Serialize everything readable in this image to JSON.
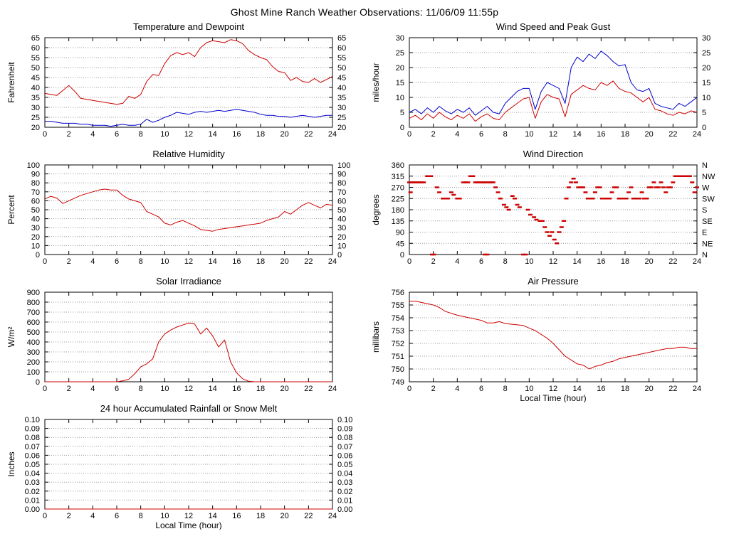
{
  "page": {
    "title": "Ghost Mine Ranch Weather Observations: 11/06/09 11:55p"
  },
  "colors": {
    "primary_series": "#cc0000",
    "secondary_series": "#0000cc",
    "grid": "#999999",
    "axis": "#000000"
  },
  "chart_data": [
    {
      "id": "temperature-dewpoint",
      "type": "line",
      "title": "Temperature and Dewpoint",
      "ylabel": "Fahrenheit",
      "xlabel": "",
      "xlim": [
        0,
        24
      ],
      "xtick_step": 2,
      "ylim": [
        20,
        65
      ],
      "ytick_step": 5,
      "ydecimals": 0,
      "mirror_y": true,
      "grid": true,
      "legend": "none",
      "series": [
        {
          "name": "temperature",
          "color": "#cc0000",
          "style": "line",
          "x_start": 0,
          "x_step": 0.5,
          "values": [
            37,
            36.5,
            36,
            38.5,
            41,
            38,
            34.5,
            34,
            33.5,
            33,
            32.5,
            32,
            31.5,
            32,
            35.5,
            34.5,
            36.5,
            43,
            46.5,
            46,
            52,
            56,
            57.5,
            56.5,
            57.5,
            55.5,
            60,
            62.5,
            63.5,
            63,
            62.5,
            64,
            63.5,
            62,
            58.5,
            56.5,
            55,
            54,
            50.5,
            48,
            47.5,
            43.5,
            45,
            43,
            42.5,
            44.5,
            42.5,
            44,
            45.5
          ]
        },
        {
          "name": "dewpoint",
          "color": "#0000cc",
          "style": "line",
          "x_start": 0,
          "x_step": 0.5,
          "values": [
            23,
            23,
            22.5,
            22,
            22,
            22,
            21.5,
            21.5,
            21,
            21,
            21,
            20.5,
            21,
            21.5,
            21,
            21,
            21.5,
            24,
            22.5,
            23.5,
            25,
            26,
            27.5,
            27,
            26.5,
            27.5,
            28,
            27.5,
            28,
            28.5,
            28,
            28.5,
            29,
            28.5,
            28,
            27.5,
            26.5,
            26,
            26,
            25.5,
            25.5,
            25,
            25.5,
            26,
            25.5,
            25,
            25.5,
            26,
            26
          ]
        }
      ]
    },
    {
      "id": "wind-speed",
      "type": "line",
      "title": "Wind Speed and Peak Gust",
      "ylabel": "miles/hour",
      "xlabel": "",
      "xlim": [
        0,
        24
      ],
      "xtick_step": 2,
      "ylim": [
        0,
        30
      ],
      "ytick_step": 5,
      "ydecimals": 0,
      "mirror_y": true,
      "grid": true,
      "legend": "none",
      "series": [
        {
          "name": "wind-speed",
          "color": "#cc0000",
          "style": "line",
          "x_start": 0,
          "x_step": 0.5,
          "values": [
            3,
            4,
            2.5,
            4.5,
            3,
            5,
            3.5,
            2.5,
            4,
            3,
            4.5,
            2,
            3.5,
            4.5,
            3,
            2.5,
            5,
            6.5,
            8,
            9.5,
            10,
            3,
            8.5,
            11,
            10,
            9.5,
            3.5,
            11,
            12.5,
            14,
            13,
            12.5,
            15,
            14,
            15.5,
            13,
            12,
            11.5,
            10,
            8.5,
            10,
            6,
            5.5,
            4.5,
            4,
            5,
            4.5,
            5.5,
            5
          ]
        },
        {
          "name": "peak-gust",
          "color": "#0000cc",
          "style": "line",
          "x_start": 0,
          "x_step": 0.5,
          "values": [
            5,
            6,
            4.5,
            6.5,
            5,
            7,
            5.5,
            4.5,
            6,
            5,
            6.5,
            4,
            5.5,
            7,
            5,
            4.5,
            8,
            10,
            12,
            13,
            13,
            6,
            12,
            15,
            14,
            13,
            8,
            20,
            23.5,
            22,
            24.5,
            23,
            25.5,
            24,
            22,
            20.5,
            21,
            15,
            12.5,
            12,
            13,
            8,
            7,
            6.5,
            6,
            8,
            7,
            8.5,
            10
          ]
        }
      ]
    },
    {
      "id": "humidity",
      "type": "line",
      "title": "Relative Humidity",
      "ylabel": "Percent",
      "xlabel": "",
      "xlim": [
        0,
        24
      ],
      "xtick_step": 2,
      "ylim": [
        0,
        100
      ],
      "ytick_step": 10,
      "ydecimals": 0,
      "mirror_y": true,
      "grid": true,
      "legend": "none",
      "series": [
        {
          "name": "relative-humidity",
          "color": "#cc0000",
          "style": "line",
          "x_start": 0,
          "x_step": 0.5,
          "values": [
            62,
            65,
            63,
            57,
            60,
            63,
            66,
            68,
            70,
            72,
            73,
            72,
            72,
            66,
            62,
            60,
            58,
            48,
            45,
            42,
            35,
            33,
            36,
            38,
            35,
            32,
            28,
            27,
            26,
            28,
            29,
            30,
            31,
            32,
            33,
            34,
            35,
            38,
            40,
            42,
            48,
            45,
            50,
            55,
            58,
            55,
            52,
            56,
            55
          ]
        }
      ]
    },
    {
      "id": "wind-direction",
      "type": "scatter",
      "title": "Wind Direction",
      "ylabel": "degrees",
      "xlabel": "",
      "xlim": [
        0,
        24
      ],
      "xtick_step": 2,
      "ylim": [
        0,
        360
      ],
      "ytick_step": 45,
      "ydecimals": 0,
      "mirror_y": false,
      "grid": true,
      "legend": "none",
      "right_axis_labels": [
        "N",
        "NW",
        "W",
        "SW",
        "S",
        "SE",
        "E",
        "NE",
        "N"
      ],
      "series": [
        {
          "name": "wind-direction",
          "color": "#cc0000",
          "style": "dash",
          "points": [
            [
              0,
              290
            ],
            [
              0.15,
              290
            ],
            [
              0.3,
              290
            ],
            [
              0.45,
              290
            ],
            [
              0.6,
              290
            ],
            [
              0.75,
              290
            ],
            [
              0.9,
              290
            ],
            [
              1.05,
              290
            ],
            [
              1.2,
              290
            ],
            [
              0.1,
              250
            ],
            [
              1.5,
              315
            ],
            [
              1.65,
              315
            ],
            [
              1.8,
              315
            ],
            [
              1.9,
              0
            ],
            [
              2.05,
              0
            ],
            [
              2.3,
              270
            ],
            [
              2.5,
              250
            ],
            [
              2.8,
              225
            ],
            [
              3,
              225
            ],
            [
              3.2,
              225
            ],
            [
              3.5,
              250
            ],
            [
              3.7,
              240
            ],
            [
              4,
              225
            ],
            [
              4.2,
              225
            ],
            [
              4.5,
              290
            ],
            [
              4.7,
              290
            ],
            [
              4.9,
              290
            ],
            [
              5.1,
              315
            ],
            [
              5.3,
              315
            ],
            [
              5.5,
              290
            ],
            [
              5.65,
              290
            ],
            [
              5.8,
              290
            ],
            [
              5.95,
              290
            ],
            [
              6.1,
              290
            ],
            [
              6.25,
              290
            ],
            [
              6.4,
              290
            ],
            [
              6.55,
              290
            ],
            [
              6.7,
              290
            ],
            [
              6.85,
              290
            ],
            [
              7,
              290
            ],
            [
              6.3,
              0
            ],
            [
              6.5,
              0
            ],
            [
              7.2,
              270
            ],
            [
              7.4,
              250
            ],
            [
              7.6,
              225
            ],
            [
              7.9,
              200
            ],
            [
              8.1,
              190
            ],
            [
              8.3,
              180
            ],
            [
              8.6,
              235
            ],
            [
              8.8,
              225
            ],
            [
              9,
              200
            ],
            [
              9.2,
              190
            ],
            [
              9.5,
              0
            ],
            [
              9.7,
              0
            ],
            [
              9.9,
              180
            ],
            [
              10.1,
              160
            ],
            [
              10.4,
              150
            ],
            [
              10.6,
              140
            ],
            [
              10.9,
              135
            ],
            [
              11.1,
              135
            ],
            [
              11.3,
              110
            ],
            [
              11.5,
              90
            ],
            [
              11.7,
              75
            ],
            [
              11.9,
              90
            ],
            [
              12.1,
              60
            ],
            [
              12.3,
              45
            ],
            [
              12.5,
              90
            ],
            [
              12.7,
              110
            ],
            [
              12.9,
              135
            ],
            [
              13.1,
              225
            ],
            [
              13.3,
              270
            ],
            [
              13.5,
              290
            ],
            [
              13.7,
              305
            ],
            [
              13.9,
              290
            ],
            [
              14.1,
              270
            ],
            [
              14.3,
              270
            ],
            [
              14.5,
              270
            ],
            [
              14.7,
              250
            ],
            [
              14.9,
              225
            ],
            [
              15.1,
              225
            ],
            [
              15.3,
              225
            ],
            [
              15.5,
              250
            ],
            [
              15.7,
              270
            ],
            [
              15.9,
              270
            ],
            [
              16.1,
              225
            ],
            [
              16.3,
              225
            ],
            [
              16.5,
              225
            ],
            [
              16.7,
              225
            ],
            [
              16.9,
              250
            ],
            [
              17.1,
              270
            ],
            [
              17.3,
              270
            ],
            [
              17.5,
              225
            ],
            [
              17.7,
              225
            ],
            [
              17.9,
              225
            ],
            [
              18.1,
              225
            ],
            [
              18.3,
              250
            ],
            [
              18.5,
              270
            ],
            [
              18.7,
              225
            ],
            [
              19,
              225
            ],
            [
              19.2,
              225
            ],
            [
              19.4,
              250
            ],
            [
              19.6,
              225
            ],
            [
              19.8,
              225
            ],
            [
              20,
              270
            ],
            [
              20.2,
              270
            ],
            [
              20.4,
              290
            ],
            [
              20.6,
              270
            ],
            [
              20.8,
              270
            ],
            [
              21,
              290
            ],
            [
              21.2,
              270
            ],
            [
              21.4,
              250
            ],
            [
              21.6,
              270
            ],
            [
              21.8,
              270
            ],
            [
              22,
              290
            ],
            [
              22.2,
              315
            ],
            [
              22.4,
              315
            ],
            [
              22.6,
              315
            ],
            [
              22.8,
              315
            ],
            [
              23,
              315
            ],
            [
              23.2,
              315
            ],
            [
              23.4,
              315
            ],
            [
              23.6,
              290
            ],
            [
              23.8,
              250
            ],
            [
              24,
              270
            ]
          ]
        }
      ]
    },
    {
      "id": "solar",
      "type": "line",
      "title": "Solar Irradiance",
      "ylabel": "W/m²",
      "xlabel": "",
      "xlim": [
        0,
        24
      ],
      "xtick_step": 2,
      "ylim": [
        0,
        900
      ],
      "ytick_step": 100,
      "ydecimals": 0,
      "mirror_y": false,
      "grid": true,
      "legend": "none",
      "series": [
        {
          "name": "solar-irradiance",
          "color": "#cc0000",
          "style": "line",
          "x_start": 0,
          "x_step": 0.5,
          "values": [
            0,
            0,
            0,
            0,
            0,
            0,
            0,
            0,
            0,
            0,
            0,
            0,
            0,
            10,
            25,
            80,
            150,
            180,
            230,
            400,
            480,
            520,
            550,
            570,
            590,
            580,
            480,
            540,
            460,
            350,
            420,
            200,
            90,
            30,
            5,
            0,
            0,
            0,
            0,
            0,
            0,
            0,
            0,
            0,
            0,
            0,
            0,
            0,
            0
          ]
        }
      ]
    },
    {
      "id": "pressure",
      "type": "line",
      "title": "Air Pressure",
      "ylabel": "millibars",
      "xlabel": "Local Time (hour)",
      "xlim": [
        0,
        24
      ],
      "xtick_step": 2,
      "ylim": [
        749,
        756
      ],
      "ytick_step": 1,
      "ydecimals": 0,
      "mirror_y": false,
      "grid": true,
      "legend": "none",
      "series": [
        {
          "name": "air-pressure",
          "color": "#cc0000",
          "style": "line",
          "x_start": 0,
          "x_step": 0.5,
          "values": [
            755.3,
            755.3,
            755.2,
            755.1,
            755.0,
            754.8,
            754.5,
            754.35,
            754.2,
            754.1,
            754.0,
            753.9,
            753.8,
            753.6,
            753.6,
            753.7,
            753.55,
            753.5,
            753.45,
            753.4,
            753.2,
            753.0,
            752.7,
            752.4,
            752.0,
            751.5,
            751.0,
            750.7,
            750.4,
            750.3,
            750.0,
            750.2,
            750.3,
            750.5,
            750.6,
            750.8,
            750.9,
            751.0,
            751.1,
            751.2,
            751.3,
            751.4,
            751.5,
            751.6,
            751.6,
            751.7,
            751.7,
            751.6,
            751.6
          ]
        }
      ]
    },
    {
      "id": "rainfall",
      "type": "line",
      "title": "24 hour Accumulated Rainfall or Snow Melt",
      "ylabel": "Inches",
      "xlabel": "Local Time (hour)",
      "xlim": [
        0,
        24
      ],
      "xtick_step": 2,
      "ylim": [
        0,
        0.1
      ],
      "ytick_step": 0.01,
      "ydecimals": 2,
      "mirror_y": true,
      "grid": true,
      "legend": "none",
      "series": [
        {
          "name": "rainfall",
          "color": "#cc0000",
          "style": "line",
          "x_start": 0,
          "x_step": 0.5,
          "values": [
            0,
            0,
            0,
            0,
            0,
            0,
            0,
            0,
            0,
            0,
            0,
            0,
            0,
            0,
            0,
            0,
            0,
            0,
            0,
            0,
            0,
            0,
            0,
            0,
            0,
            0,
            0,
            0,
            0,
            0,
            0,
            0,
            0,
            0,
            0,
            0,
            0,
            0,
            0,
            0,
            0,
            0,
            0,
            0,
            0,
            0,
            0,
            0,
            0
          ]
        }
      ]
    }
  ]
}
